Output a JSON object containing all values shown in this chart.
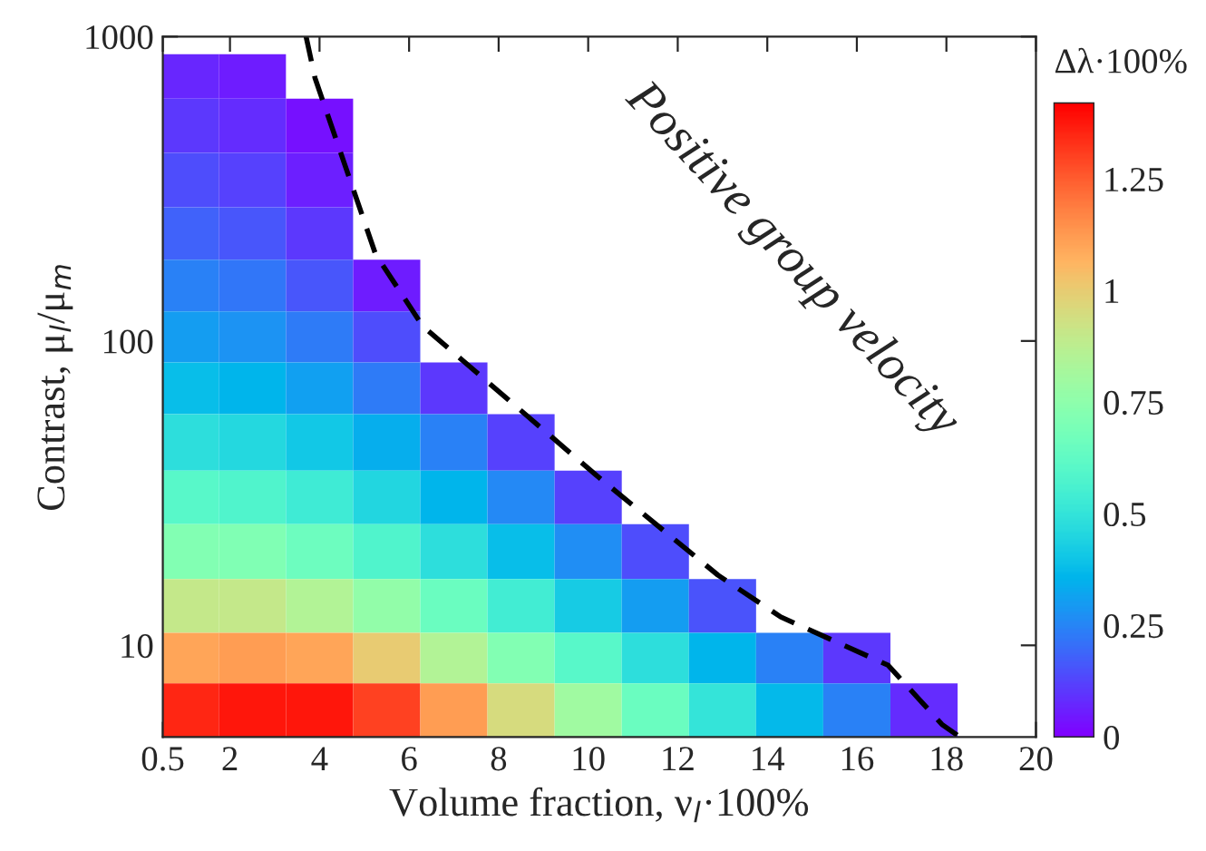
{
  "chart_data": {
    "type": "heatmap",
    "xlabel": "Volume fraction, ν$_{l}$·100%",
    "ylabel": "Contrast, μ$_{l}$/μ$_{m}$",
    "clabel": "Δλ·100%",
    "x": [
      1,
      2.5,
      4,
      5.5,
      7,
      8.5,
      10,
      11.5,
      13,
      14.5,
      16,
      17.5,
      19
    ],
    "y": [
      750,
      500,
      330,
      220,
      150,
      100,
      70,
      45,
      30,
      20,
      13,
      9,
      6
    ],
    "cells": [
      [
        0.07,
        0.05,
        null,
        null,
        null,
        null,
        null,
        null,
        null,
        null,
        null,
        null,
        null
      ],
      [
        0.1,
        0.08,
        0.03,
        null,
        null,
        null,
        null,
        null,
        null,
        null,
        null,
        null,
        null
      ],
      [
        0.14,
        0.12,
        0.06,
        null,
        null,
        null,
        null,
        null,
        null,
        null,
        null,
        null,
        null
      ],
      [
        0.18,
        0.16,
        0.1,
        null,
        null,
        null,
        null,
        null,
        null,
        null,
        null,
        null,
        null
      ],
      [
        0.24,
        0.22,
        0.16,
        0.05,
        null,
        null,
        null,
        null,
        null,
        null,
        null,
        null,
        null
      ],
      [
        0.3,
        0.28,
        0.23,
        0.14,
        null,
        null,
        null,
        null,
        null,
        null,
        null,
        null,
        null
      ],
      [
        0.38,
        0.36,
        0.31,
        0.23,
        0.1,
        null,
        null,
        null,
        null,
        null,
        null,
        null,
        null
      ],
      [
        0.48,
        0.46,
        0.41,
        0.34,
        0.24,
        0.12,
        null,
        null,
        null,
        null,
        null,
        null,
        null
      ],
      [
        0.6,
        0.58,
        0.53,
        0.45,
        0.36,
        0.26,
        0.12,
        null,
        null,
        null,
        null,
        null,
        null
      ],
      [
        0.72,
        0.71,
        0.66,
        0.58,
        0.48,
        0.38,
        0.27,
        0.14,
        null,
        null,
        null,
        null,
        null
      ],
      [
        0.9,
        0.9,
        0.85,
        0.76,
        0.65,
        0.54,
        0.42,
        0.3,
        0.15,
        null,
        null,
        null,
        null
      ],
      [
        1.1,
        1.12,
        1.1,
        1.0,
        0.85,
        0.72,
        0.6,
        0.48,
        0.36,
        0.24,
        0.1,
        null,
        null
      ],
      [
        1.35,
        1.38,
        1.38,
        1.3,
        1.12,
        0.95,
        0.8,
        0.65,
        0.5,
        0.37,
        0.24,
        0.08,
        null
      ]
    ],
    "clim": [
      0,
      1.42
    ],
    "cticks": [
      0,
      0.25,
      0.5,
      0.75,
      1,
      1.25
    ],
    "series": [
      {
        "type": "line",
        "color": "#000000",
        "line_style": "dashed",
        "x": [
          3.7,
          3.9,
          5.25,
          6.3,
          10.2,
          12.9,
          14.3,
          16.7,
          17.9,
          18.3
        ],
        "values": [
          1000,
          730,
          193,
          112,
          36,
          17,
          12.4,
          8.6,
          5.5,
          5
        ]
      }
    ],
    "annotations": [
      "Positive group velocity"
    ],
    "xlim": [
      0.5,
      20
    ],
    "xticks": [
      0.5,
      2,
      4,
      6,
      8,
      10,
      12,
      14,
      16,
      18,
      20
    ],
    "ylim": [
      5,
      1000
    ],
    "yticks": [
      10,
      100,
      1000
    ],
    "log": "y",
    "grid": false,
    "legend": false
  }
}
